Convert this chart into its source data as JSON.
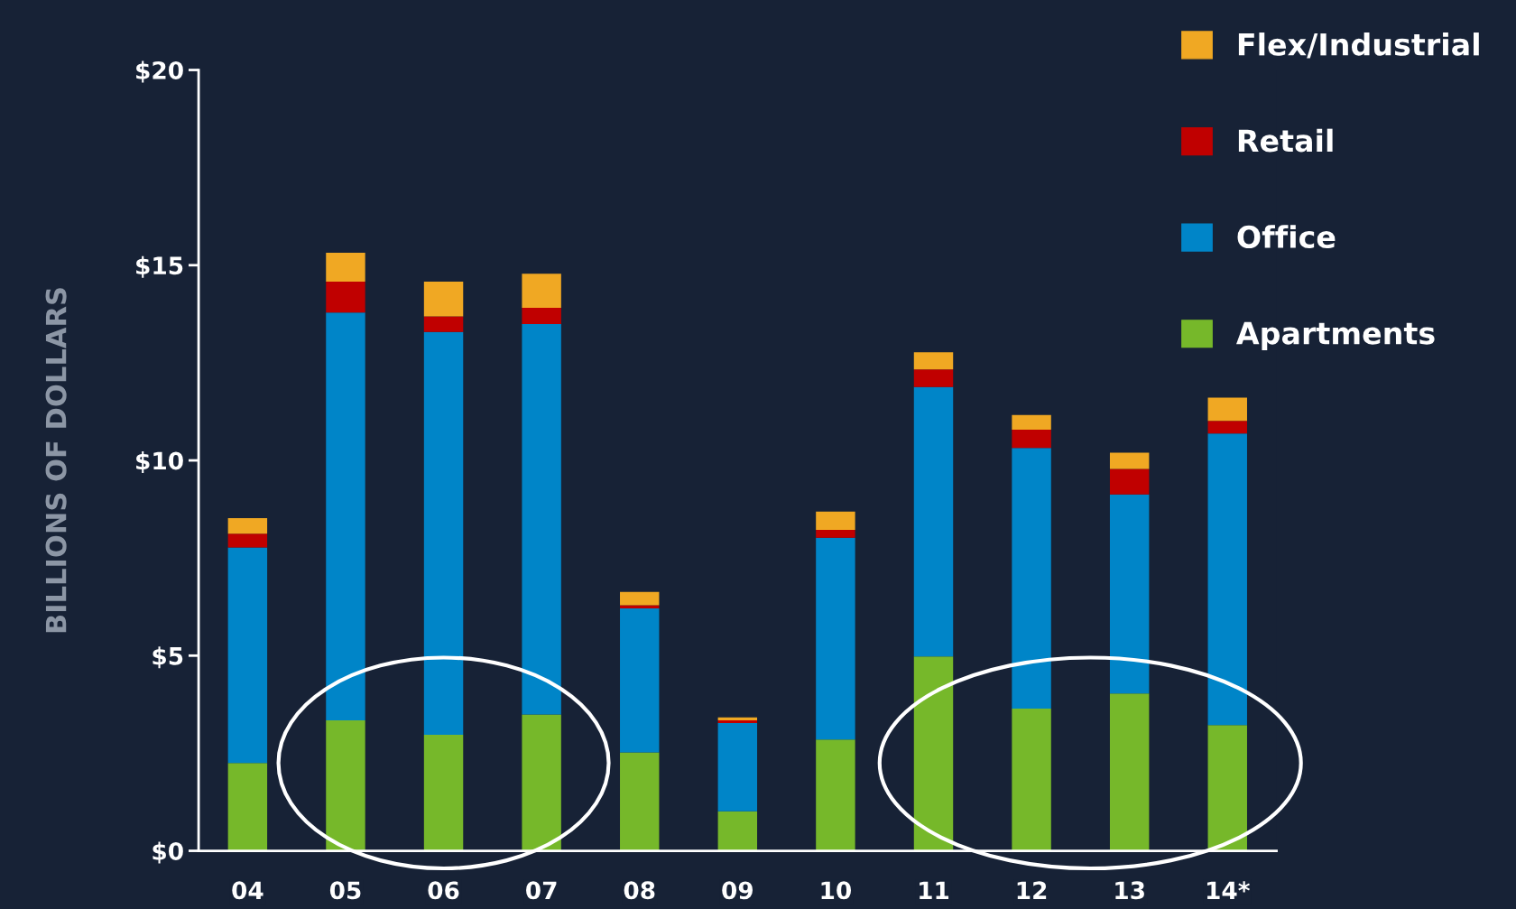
{
  "chart_data": {
    "type": "bar",
    "stacked": true,
    "ylabel": "BILLIONS OF DOLLARS",
    "categories": [
      "04",
      "05",
      "06",
      "07",
      "08",
      "09",
      "10",
      "11",
      "12",
      "13",
      "14*"
    ],
    "series": [
      {
        "name": "Apartments",
        "color": "#76b82a",
        "values": [
          2.25,
          3.34,
          2.97,
          3.49,
          2.52,
          1.01,
          2.85,
          4.98,
          3.64,
          4.03,
          3.22
        ]
      },
      {
        "name": "Office",
        "color": "#0085c8",
        "values": [
          5.52,
          10.45,
          10.32,
          10.0,
          3.69,
          2.26,
          5.17,
          6.9,
          6.68,
          5.1,
          7.47
        ]
      },
      {
        "name": "Retail",
        "color": "#c00000",
        "values": [
          0.35,
          0.79,
          0.4,
          0.42,
          0.08,
          0.07,
          0.2,
          0.45,
          0.47,
          0.65,
          0.32
        ]
      },
      {
        "name": "Flex/Industrial",
        "color": "#f0a823",
        "values": [
          0.4,
          0.74,
          0.89,
          0.87,
          0.34,
          0.08,
          0.47,
          0.44,
          0.37,
          0.42,
          0.6
        ]
      }
    ],
    "ylim": [
      0,
      20
    ],
    "yticks": [
      {
        "value": 0,
        "label": "$0"
      },
      {
        "value": 5,
        "label": "$5"
      },
      {
        "value": 10,
        "label": "$10"
      },
      {
        "value": 15,
        "label": "$15"
      },
      {
        "value": 20,
        "label": "$20"
      }
    ],
    "grid": false,
    "legend": "top right"
  }
}
